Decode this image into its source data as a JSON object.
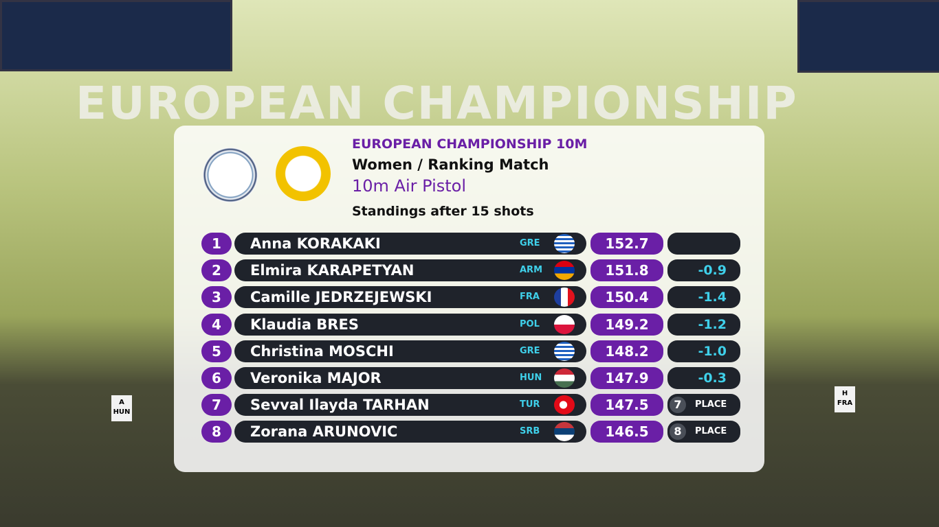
{
  "background": {
    "banner": "EUROPEAN CHAMPIONSHIP",
    "lanes": [
      {
        "letter": "A",
        "country": "HUN"
      },
      {
        "letter": "H",
        "country": "FRA"
      }
    ]
  },
  "header": {
    "event": "EUROPEAN CHAMPIONSHIP 10M",
    "match": "Women / Ranking Match",
    "discipline": "10m Air Pistol",
    "status": "Standings after 15 shots"
  },
  "table": {
    "rows": [
      {
        "rank": "1",
        "name": "Anna KORAKAKI",
        "country": "GRE",
        "score": "152.7"
      },
      {
        "rank": "2",
        "name": "Elmira KARAPETYAN",
        "country": "ARM",
        "score": "151.8",
        "diff": "-0.9"
      },
      {
        "rank": "3",
        "name": "Camille JEDRZEJEWSKI",
        "country": "FRA",
        "score": "150.4",
        "diff": "-1.4"
      },
      {
        "rank": "4",
        "name": "Klaudia BRES",
        "country": "POL",
        "score": "149.2",
        "diff": "-1.2"
      },
      {
        "rank": "5",
        "name": "Christina MOSCHI",
        "country": "GRE",
        "score": "148.2",
        "diff": "-1.0"
      },
      {
        "rank": "6",
        "name": "Veronika MAJOR",
        "country": "HUN",
        "score": "147.9",
        "diff": "-0.3"
      },
      {
        "rank": "7",
        "name": "Sevval Ilayda TARHAN",
        "country": "TUR",
        "score": "147.5",
        "place": {
          "number": "7",
          "label": "PLACE"
        }
      },
      {
        "rank": "8",
        "name": "Zorana ARUNOVIC",
        "country": "SRB",
        "score": "146.5",
        "place": {
          "number": "8",
          "label": "PLACE"
        }
      }
    ]
  }
}
